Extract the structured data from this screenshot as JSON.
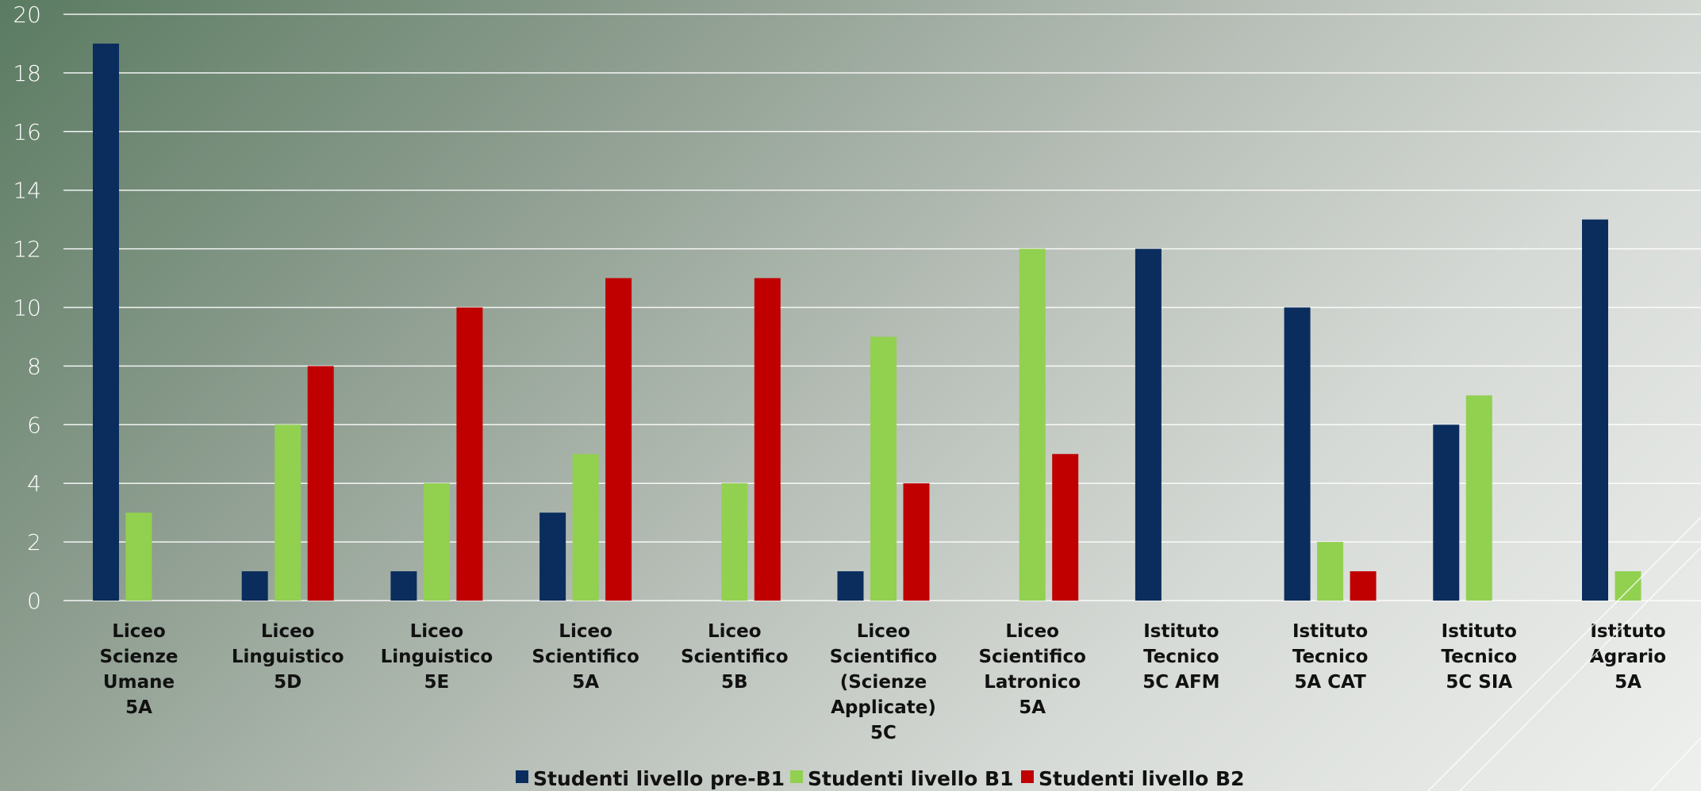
{
  "colors": {
    "pre_b1": "#0a2d5e",
    "b1": "#92d050",
    "b2": "#c00000",
    "grid": "#ffffff"
  },
  "chart_data": {
    "type": "bar",
    "title": "",
    "xlabel": "",
    "ylabel": "",
    "ylim": [
      0,
      20
    ],
    "yticks": [
      0,
      2,
      4,
      6,
      8,
      10,
      12,
      14,
      16,
      18,
      20
    ],
    "grid": true,
    "legend_position": "bottom",
    "categories": [
      [
        "Liceo",
        "Scienze",
        "Umane",
        "5A"
      ],
      [
        "Liceo",
        "Linguistico",
        "5D"
      ],
      [
        "Liceo",
        "Linguistico",
        "5E"
      ],
      [
        "Liceo",
        "Scientifico",
        "5A"
      ],
      [
        "Liceo",
        "Scientifico",
        "5B"
      ],
      [
        "Liceo",
        "Scientifico",
        "(Scienze",
        "Applicate)",
        "5C"
      ],
      [
        "Liceo",
        "Scientifico",
        "Latronico",
        "5A"
      ],
      [
        "Istituto",
        "Tecnico",
        "5C  AFM"
      ],
      [
        "Istituto",
        "Tecnico",
        "5A  CAT"
      ],
      [
        "Istituto",
        "Tecnico",
        "5C  SIA"
      ],
      [
        "Istituto",
        "Agrario",
        "5A"
      ]
    ],
    "series": [
      {
        "name": "Studenti livello pre-B1",
        "color": "#0a2d5e",
        "values": [
          19,
          1,
          1,
          3,
          0,
          1,
          0,
          12,
          10,
          6,
          13
        ]
      },
      {
        "name": "Studenti livello B1",
        "color": "#92d050",
        "values": [
          3,
          6,
          4,
          5,
          4,
          9,
          12,
          0,
          2,
          7,
          1
        ]
      },
      {
        "name": "Studenti livello B2",
        "color": "#c00000",
        "values": [
          0,
          8,
          10,
          11,
          11,
          4,
          5,
          0,
          1,
          0,
          0
        ]
      }
    ]
  }
}
